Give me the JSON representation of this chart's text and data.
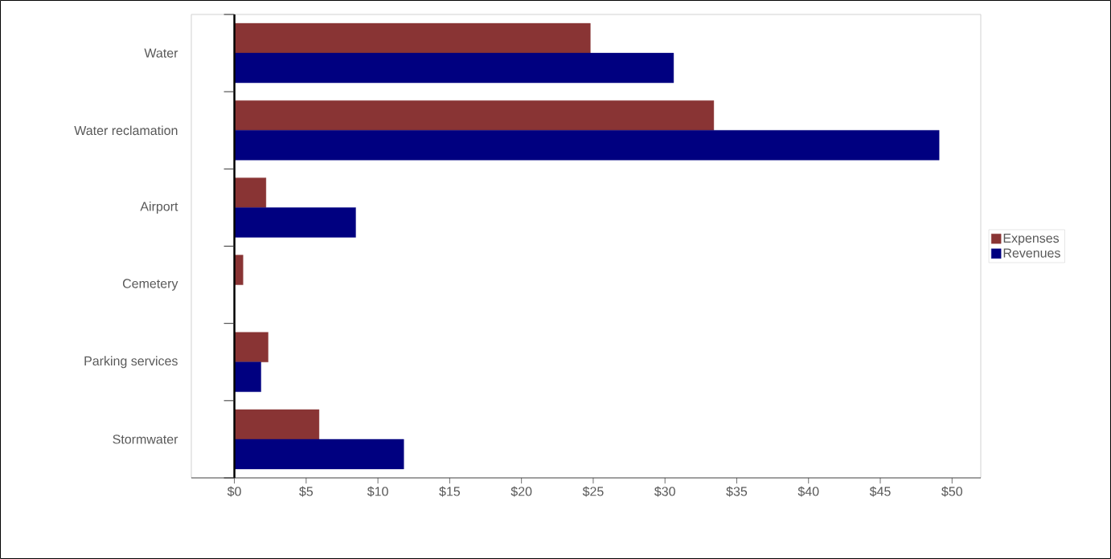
{
  "chart_data": {
    "type": "bar",
    "orientation": "horizontal",
    "categories": [
      "Water",
      "Water reclamation",
      "Airport",
      "Cemetery",
      "Parking services",
      "Stormwater"
    ],
    "series": [
      {
        "name": "Expenses",
        "color": "#893434",
        "values": [
          24.8,
          33.4,
          2.2,
          0.6,
          2.35,
          5.9
        ]
      },
      {
        "name": "Revenues",
        "color": "#000080",
        "values": [
          30.6,
          49.1,
          8.45,
          null,
          1.85,
          11.8
        ]
      }
    ],
    "xlim": [
      -3,
      52
    ],
    "xticks": [
      {
        "value": 0,
        "label": "$0"
      },
      {
        "value": 5,
        "label": "$5"
      },
      {
        "value": 10,
        "label": "$10"
      },
      {
        "value": 15,
        "label": "$15"
      },
      {
        "value": 20,
        "label": "$20"
      },
      {
        "value": 25,
        "label": "$25"
      },
      {
        "value": 30,
        "label": "$30"
      },
      {
        "value": 35,
        "label": "$35"
      },
      {
        "value": 40,
        "label": "$40"
      },
      {
        "value": 45,
        "label": "$45"
      },
      {
        "value": 50,
        "label": "$50"
      }
    ],
    "legend": "right"
  }
}
